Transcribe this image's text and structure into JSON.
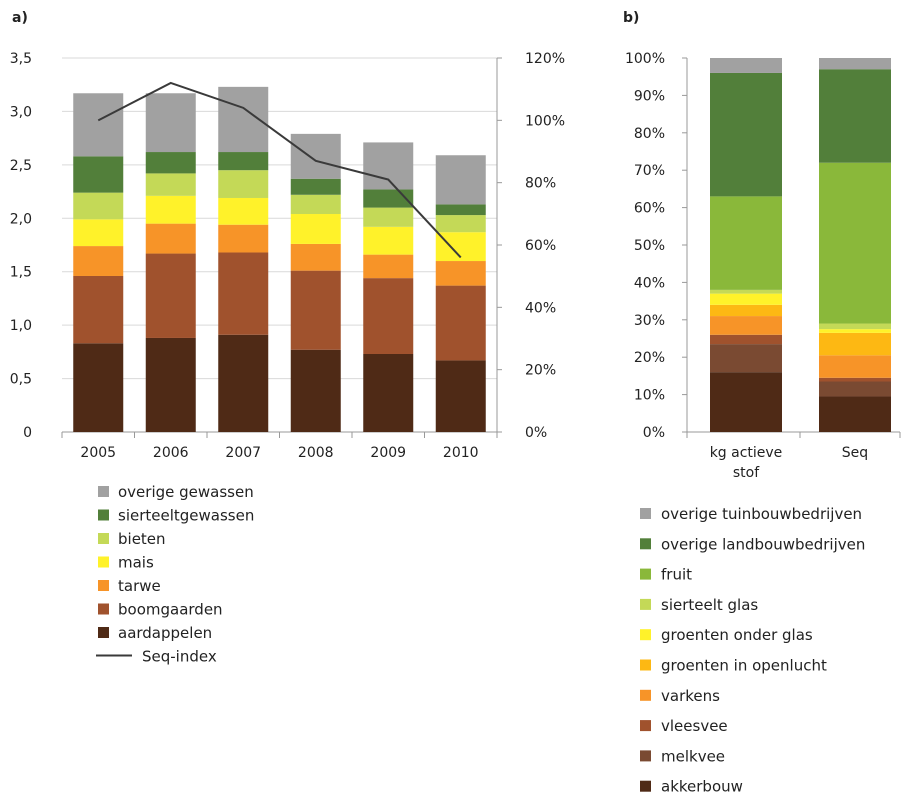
{
  "chart_data": [
    {
      "type": "bar",
      "stacked": true,
      "panel_label": "a)",
      "title": "",
      "xlabel": "",
      "ylabel": "",
      "categories": [
        "2005",
        "2006",
        "2007",
        "2008",
        "2009",
        "2010"
      ],
      "ylim": [
        0,
        3.5
      ],
      "yticks": [
        "0",
        "0,5",
        "1,0",
        "1,5",
        "2,0",
        "2,5",
        "3,0",
        "3,5"
      ],
      "y2lim": [
        0,
        120
      ],
      "y2ticks": [
        "0%",
        "20%",
        "40%",
        "60%",
        "80%",
        "100%",
        "120%"
      ],
      "grid": true,
      "legend_position": "bottom",
      "series": [
        {
          "name": "aardappelen",
          "color": "#4f2a16",
          "values": [
            0.83,
            0.88,
            0.91,
            0.77,
            0.73,
            0.67
          ]
        },
        {
          "name": "boomgaarden",
          "color": "#a0522d",
          "values": [
            0.63,
            0.79,
            0.77,
            0.74,
            0.71,
            0.7
          ]
        },
        {
          "name": "tarwe",
          "color": "#f79428",
          "values": [
            0.28,
            0.28,
            0.26,
            0.25,
            0.22,
            0.23
          ]
        },
        {
          "name": "mais",
          "color": "#fff22a",
          "values": [
            0.25,
            0.26,
            0.25,
            0.28,
            0.26,
            0.27
          ]
        },
        {
          "name": "bieten",
          "color": "#c4d957",
          "values": [
            0.25,
            0.21,
            0.26,
            0.18,
            0.18,
            0.16
          ]
        },
        {
          "name": "sierteeltgewassen",
          "color": "#527f3a",
          "values": [
            0.34,
            0.2,
            0.17,
            0.15,
            0.17,
            0.1
          ]
        },
        {
          "name": "overige gewassen",
          "color": "#a1a1a1",
          "values": [
            0.59,
            0.55,
            0.61,
            0.42,
            0.44,
            0.46
          ]
        }
      ],
      "line_series": {
        "name": "Seq-index",
        "color": "#3a3a3a",
        "axis": "secondary",
        "values": [
          100,
          112,
          104,
          87,
          81,
          56
        ]
      }
    },
    {
      "type": "bar",
      "stacked": true,
      "percent": true,
      "panel_label": "b)",
      "title": "",
      "xlabel": "",
      "ylabel": "",
      "categories": [
        [
          "kg actieve",
          "stof"
        ],
        [
          "Seq"
        ]
      ],
      "ylim": [
        0,
        100
      ],
      "yticks": [
        "0%",
        "10%",
        "20%",
        "30%",
        "40%",
        "50%",
        "60%",
        "70%",
        "80%",
        "90%",
        "100%"
      ],
      "grid": false,
      "legend_position": "bottom",
      "series": [
        {
          "name": "akkerbouw",
          "color": "#4f2a16",
          "values": [
            16,
            9.5
          ]
        },
        {
          "name": "melkvee",
          "color": "#7a4a32",
          "values": [
            7.5,
            4
          ]
        },
        {
          "name": "vleesvee",
          "color": "#a0522d",
          "values": [
            2.5,
            1
          ]
        },
        {
          "name": "varkens",
          "color": "#f79428",
          "values": [
            5,
            6
          ]
        },
        {
          "name": "groenten in openlucht",
          "color": "#fdb813",
          "values": [
            3,
            6
          ]
        },
        {
          "name": "groenten onder glas",
          "color": "#fff22a",
          "values": [
            3,
            1
          ]
        },
        {
          "name": "sierteelt glas",
          "color": "#c4d957",
          "values": [
            1,
            1.5
          ]
        },
        {
          "name": "fruit",
          "color": "#8ab83a",
          "values": [
            25,
            43
          ]
        },
        {
          "name": "overige landbouwbedrijven",
          "color": "#527f3a",
          "values": [
            33,
            25
          ]
        },
        {
          "name": "overige tuinbouwbedrijven",
          "color": "#a1a1a1",
          "values": [
            4,
            3
          ]
        }
      ]
    }
  ]
}
